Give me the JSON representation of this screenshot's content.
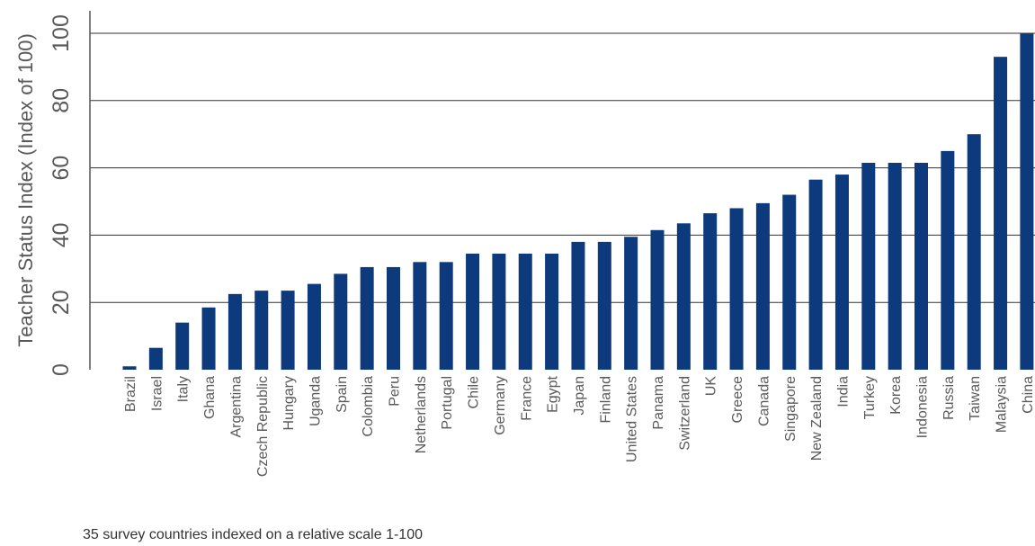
{
  "chart_data": {
    "type": "bar",
    "title": "",
    "xlabel": "",
    "ylabel": "Teacher Status Index (Index of 100)",
    "ylim": [
      0,
      100
    ],
    "yticks": [
      0,
      20,
      40,
      60,
      80,
      100
    ],
    "grid": true,
    "categories": [
      "Brazil",
      "Israel",
      "Italy",
      "Ghana",
      "Argentina",
      "Czech Republic",
      "Hungary",
      "Uganda",
      "Spain",
      "Colombia",
      "Peru",
      "Netherlands",
      "Portugal",
      "Chile",
      "Germany",
      "France",
      "Egypt",
      "Japan",
      "Finland",
      "United States",
      "Panama",
      "Switzerland",
      "UK",
      "Greece",
      "Canada",
      "Singapore",
      "New Zealand",
      "India",
      "Turkey",
      "Korea",
      "Indonesia",
      "Russia",
      "Taiwan",
      "Malaysia",
      "China"
    ],
    "values": [
      1,
      6.5,
      14,
      18.5,
      22.5,
      23.5,
      23.5,
      25.5,
      28.5,
      30.5,
      30.5,
      32,
      32,
      34.5,
      34.5,
      34.5,
      34.5,
      38,
      38,
      39.5,
      41.5,
      43.5,
      46.5,
      48,
      49.5,
      52,
      56.5,
      58,
      61.5,
      61.5,
      61.5,
      65,
      70,
      93,
      100
    ],
    "bar_color": "#0c3a7d",
    "axis_color": "#555555",
    "grid_color": "#333333",
    "text_color": "#5a5a5a"
  },
  "footnote": "35 survey countries indexed on a relative scale 1-100"
}
